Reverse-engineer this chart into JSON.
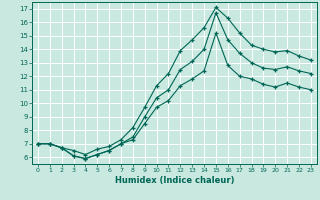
{
  "xlabel": "Humidex (Indice chaleur)",
  "xlim": [
    -0.5,
    23.5
  ],
  "ylim": [
    5.5,
    17.5
  ],
  "xticks": [
    0,
    1,
    2,
    3,
    4,
    5,
    6,
    7,
    8,
    9,
    10,
    11,
    12,
    13,
    14,
    15,
    16,
    17,
    18,
    19,
    20,
    21,
    22,
    23
  ],
  "yticks": [
    6,
    7,
    8,
    9,
    10,
    11,
    12,
    13,
    14,
    15,
    16,
    17
  ],
  "bg_color": "#c8e8e0",
  "grid_color": "#ffffff",
  "line_color": "#006655",
  "line1_x": [
    0,
    1,
    2,
    3,
    4,
    5,
    6,
    7,
    8,
    9,
    10,
    11,
    12,
    13,
    14,
    15,
    16,
    17,
    18,
    19,
    20,
    21,
    22,
    23
  ],
  "line1_y": [
    7.0,
    7.0,
    6.7,
    6.1,
    5.9,
    6.2,
    6.5,
    7.0,
    7.5,
    9.0,
    10.4,
    11.0,
    12.5,
    13.1,
    14.0,
    16.7,
    14.7,
    13.7,
    13.0,
    12.6,
    12.5,
    12.7,
    12.4,
    12.2
  ],
  "line2_x": [
    0,
    1,
    2,
    3,
    4,
    5,
    6,
    7,
    8,
    9,
    10,
    11,
    12,
    13,
    14,
    15,
    16,
    17,
    18,
    19,
    20,
    21,
    22,
    23
  ],
  "line2_y": [
    7.0,
    7.0,
    6.7,
    6.1,
    5.9,
    6.2,
    6.5,
    7.0,
    7.3,
    8.5,
    9.7,
    10.2,
    11.3,
    11.8,
    12.4,
    15.2,
    12.8,
    12.0,
    11.8,
    11.4,
    11.2,
    11.5,
    11.2,
    11.0
  ],
  "line3_x": [
    0,
    1,
    2,
    3,
    4,
    5,
    6,
    7,
    8,
    9,
    10,
    11,
    12,
    13,
    14,
    15,
    16,
    17,
    18,
    19,
    20,
    21,
    22,
    23
  ],
  "line3_y": [
    7.0,
    7.0,
    6.7,
    6.5,
    6.2,
    6.6,
    6.8,
    7.3,
    8.2,
    9.7,
    11.3,
    12.2,
    13.9,
    14.7,
    15.6,
    17.1,
    16.3,
    15.2,
    14.3,
    14.0,
    13.8,
    13.9,
    13.5,
    13.2
  ]
}
